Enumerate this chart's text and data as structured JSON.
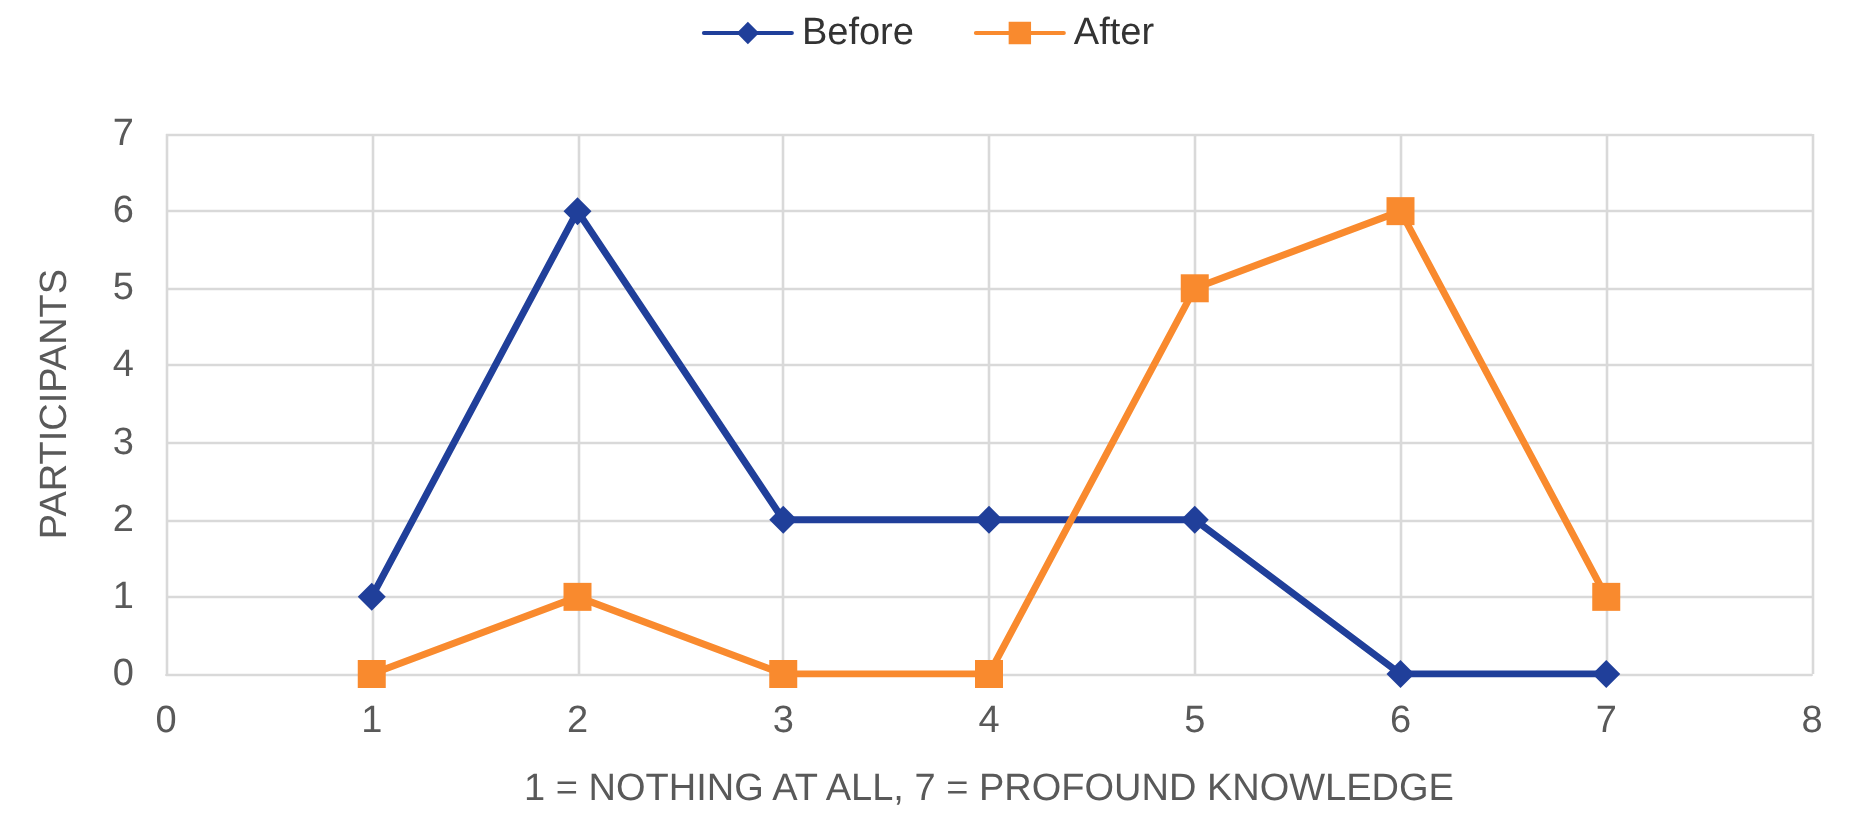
{
  "chart_data": {
    "type": "line",
    "xlabel": "1 = NOTHING AT ALL, 7 = PROFOUND KNOWLEDGE",
    "ylabel": "PARTICIPANTS",
    "x": [
      1,
      2,
      3,
      4,
      5,
      6,
      7
    ],
    "series": [
      {
        "name": "Before",
        "color": "#203f9a",
        "marker": "diamond",
        "values": [
          1,
          6,
          2,
          2,
          2,
          0,
          0
        ]
      },
      {
        "name": "After",
        "color": "#f98a2e",
        "marker": "square",
        "values": [
          0,
          1,
          0,
          0,
          5,
          6,
          1
        ]
      }
    ],
    "xlim": [
      0,
      8
    ],
    "xticks": [
      0,
      1,
      2,
      3,
      4,
      5,
      6,
      7,
      8
    ],
    "ylim": [
      0,
      7
    ],
    "yticks": [
      0,
      1,
      2,
      3,
      4,
      5,
      6,
      7
    ],
    "grid": true,
    "legend": "top",
    "line_style": "solid"
  }
}
